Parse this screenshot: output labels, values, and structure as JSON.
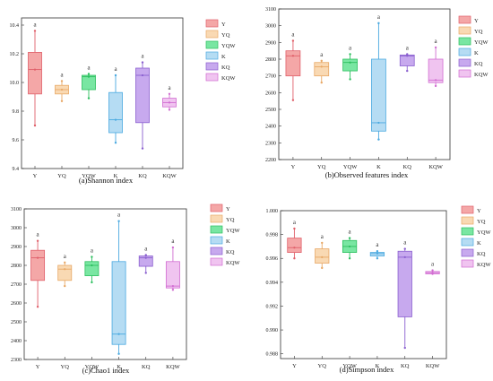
{
  "colors": {
    "Y": {
      "fill": "#f4a7a7",
      "stroke": "#e0606a"
    },
    "YQ": {
      "fill": "#f9d9b3",
      "stroke": "#e8a866"
    },
    "YQW": {
      "fill": "#79e6a2",
      "stroke": "#2cbf5e"
    },
    "K": {
      "fill": "#b5dcf3",
      "stroke": "#4aa9e0"
    },
    "KQ": {
      "fill": "#c7a9ee",
      "stroke": "#8a5fcf"
    },
    "KQW": {
      "fill": "#f0c4f0",
      "stroke": "#d16cd1"
    }
  },
  "chart_data": [
    {
      "type": "box",
      "caption": "(a)Shannon index",
      "categories": [
        "Y",
        "YQ",
        "YQW",
        "K",
        "KQ",
        "KQW"
      ],
      "ylim": [
        9.4,
        10.45
      ],
      "yticks": [
        9.4,
        9.6,
        9.8,
        10.0,
        10.2,
        10.4
      ],
      "tick_decimals": 1,
      "boxes": [
        {
          "min": 9.7,
          "q1": 9.92,
          "median": 10.09,
          "q3": 10.21,
          "max": 10.36,
          "sig": "a"
        },
        {
          "min": 9.87,
          "q1": 9.92,
          "median": 9.95,
          "q3": 9.98,
          "max": 10.01,
          "sig": "a"
        },
        {
          "min": 9.89,
          "q1": 9.95,
          "median": 10.04,
          "q3": 10.05,
          "max": 10.06,
          "sig": "a"
        },
        {
          "min": 9.58,
          "q1": 9.65,
          "median": 9.74,
          "q3": 9.93,
          "max": 10.05,
          "sig": "a"
        },
        {
          "min": 9.54,
          "q1": 9.72,
          "median": 10.05,
          "q3": 10.1,
          "max": 10.14,
          "sig": "a"
        },
        {
          "min": 9.81,
          "q1": 9.83,
          "median": 9.86,
          "q3": 9.89,
          "max": 9.92,
          "sig": "a"
        }
      ],
      "legend": [
        "Y",
        "YQ",
        "YQW",
        "K",
        "KQ",
        "KQW"
      ],
      "legend_placement": "right"
    },
    {
      "type": "box",
      "caption": "(b)Observed features index",
      "categories": [
        "Y",
        "YQ",
        "YQW",
        "K",
        "KQ",
        "KQW"
      ],
      "ylim": [
        2200,
        3100
      ],
      "yticks": [
        2200,
        2300,
        2400,
        2500,
        2600,
        2700,
        2800,
        2900,
        3000,
        3100
      ],
      "tick_decimals": 0,
      "boxes": [
        {
          "min": 2555,
          "q1": 2700,
          "median": 2820,
          "q3": 2850,
          "max": 2910,
          "sig": "a"
        },
        {
          "min": 2660,
          "q1": 2700,
          "median": 2755,
          "q3": 2780,
          "max": 2790,
          "sig": "a"
        },
        {
          "min": 2680,
          "q1": 2730,
          "median": 2780,
          "q3": 2800,
          "max": 2830,
          "sig": "a"
        },
        {
          "min": 2320,
          "q1": 2370,
          "median": 2420,
          "q3": 2800,
          "max": 3015,
          "sig": "a"
        },
        {
          "min": 2730,
          "q1": 2760,
          "median": 2820,
          "q3": 2825,
          "max": 2830,
          "sig": "a"
        },
        {
          "min": 2640,
          "q1": 2660,
          "median": 2675,
          "q3": 2800,
          "max": 2870,
          "sig": "a"
        }
      ],
      "legend": [
        "Y",
        "YQ",
        "YQW",
        "K",
        "KQ",
        "KQW"
      ],
      "legend_placement": "right"
    },
    {
      "type": "box",
      "caption": "(c)Chao1 index",
      "categories": [
        "Y",
        "YQ",
        "YQW",
        "K",
        "KQ",
        "KQW"
      ],
      "ylim": [
        2300,
        3100
      ],
      "yticks": [
        2300,
        2400,
        2500,
        2600,
        2700,
        2800,
        2900,
        3000,
        3100
      ],
      "tick_decimals": 0,
      "boxes": [
        {
          "min": 2580,
          "q1": 2720,
          "median": 2840,
          "q3": 2880,
          "max": 2930,
          "sig": "a"
        },
        {
          "min": 2690,
          "q1": 2720,
          "median": 2780,
          "q3": 2800,
          "max": 2815,
          "sig": "a"
        },
        {
          "min": 2710,
          "q1": 2745,
          "median": 2800,
          "q3": 2820,
          "max": 2845,
          "sig": "a"
        },
        {
          "min": 2330,
          "q1": 2380,
          "median": 2435,
          "q3": 2820,
          "max": 3035,
          "sig": "a"
        },
        {
          "min": 2760,
          "q1": 2795,
          "median": 2840,
          "q3": 2850,
          "max": 2855,
          "sig": "a"
        },
        {
          "min": 2670,
          "q1": 2680,
          "median": 2690,
          "q3": 2820,
          "max": 2895,
          "sig": "a"
        }
      ],
      "legend": [
        "Y",
        "YQ",
        "YQW",
        "K",
        "KQ",
        "KQW"
      ],
      "legend_placement": "right"
    },
    {
      "type": "box",
      "caption": "(d)Simpson index",
      "categories": [
        "Y",
        "YQ",
        "YQW",
        "K",
        "KQ",
        "KQW"
      ],
      "ylim": [
        0.9876,
        1.0
      ],
      "yticks": [
        0.988,
        0.99,
        0.992,
        0.994,
        0.996,
        0.998,
        1.0
      ],
      "tick_decimals": 3,
      "boxes": [
        {
          "min": 0.996,
          "q1": 0.9965,
          "median": 0.9969,
          "q3": 0.9977,
          "max": 0.9985,
          "sig": "a"
        },
        {
          "min": 0.9952,
          "q1": 0.9956,
          "median": 0.9961,
          "q3": 0.9968,
          "max": 0.9973,
          "sig": "a"
        },
        {
          "min": 0.996,
          "q1": 0.9965,
          "median": 0.997,
          "q3": 0.9975,
          "max": 0.9977,
          "sig": "a"
        },
        {
          "min": 0.996,
          "q1": 0.9962,
          "median": 0.9964,
          "q3": 0.9965,
          "max": 0.9966,
          "sig": "a"
        },
        {
          "min": 0.9885,
          "q1": 0.9911,
          "median": 0.9961,
          "q3": 0.9966,
          "max": 0.9968,
          "sig": "a"
        },
        {
          "min": 0.9947,
          "q1": 0.9947,
          "median": 0.9948,
          "q3": 0.9949,
          "max": 0.995,
          "sig": "a"
        }
      ],
      "legend": [
        "Y",
        "YQ",
        "YQW",
        "K",
        "KQ",
        "KQW"
      ],
      "legend_placement": "right"
    }
  ]
}
